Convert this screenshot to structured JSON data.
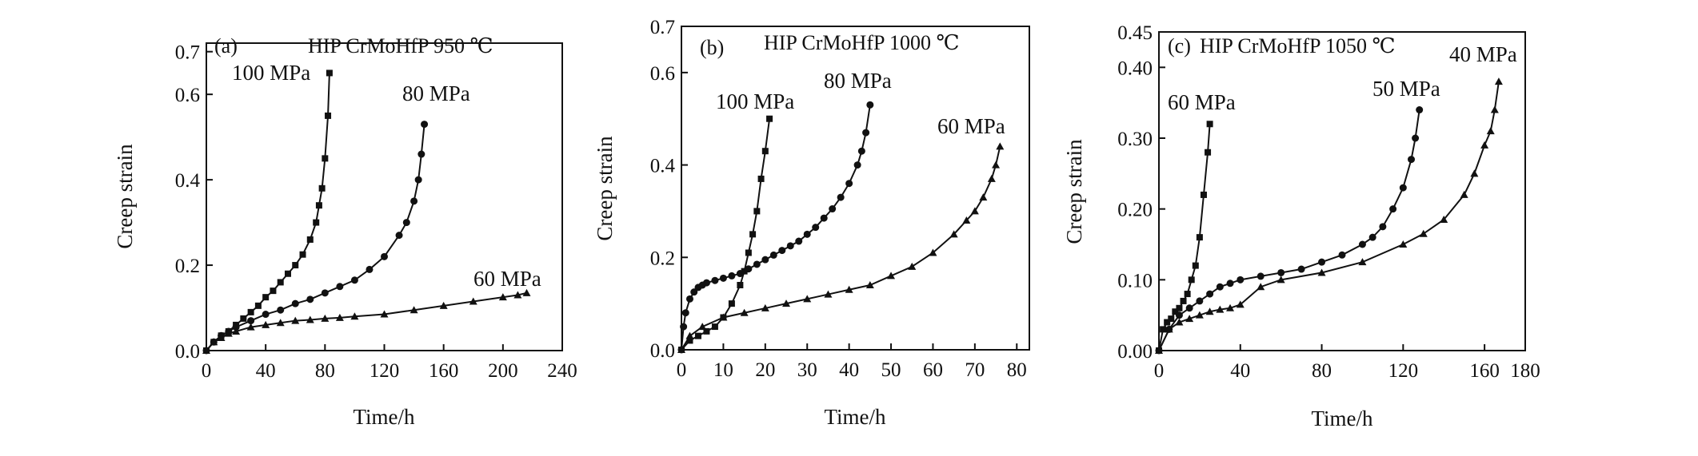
{
  "chart_data": [
    {
      "type": "line",
      "panel_label": "(a)",
      "title": "HIP CrMoHfP 950 ℃",
      "xlabel": "Time/h",
      "ylabel": "Creep strain",
      "xlim": [
        0,
        240
      ],
      "ylim": [
        0,
        0.72
      ],
      "xticks": [
        "0",
        "40",
        "80",
        "120",
        "160",
        "200",
        "240"
      ],
      "yticks": [
        "0.0",
        "0.2",
        "0.4",
        "0.6",
        "0.7"
      ],
      "series": [
        {
          "name": "100 MPa",
          "marker": "square",
          "x": [
            0,
            5,
            10,
            15,
            20,
            25,
            30,
            35,
            40,
            45,
            50,
            55,
            60,
            65,
            70,
            74,
            76,
            78,
            80,
            82,
            83
          ],
          "y": [
            0,
            0.02,
            0.035,
            0.045,
            0.06,
            0.075,
            0.09,
            0.105,
            0.125,
            0.14,
            0.16,
            0.18,
            0.2,
            0.225,
            0.26,
            0.3,
            0.34,
            0.38,
            0.45,
            0.55,
            0.65
          ]
        },
        {
          "name": "80 MPa",
          "marker": "circle",
          "x": [
            0,
            5,
            10,
            15,
            20,
            30,
            40,
            50,
            60,
            70,
            80,
            90,
            100,
            110,
            120,
            130,
            135,
            140,
            143,
            145,
            147
          ],
          "y": [
            0,
            0.02,
            0.035,
            0.045,
            0.055,
            0.07,
            0.085,
            0.095,
            0.11,
            0.12,
            0.135,
            0.15,
            0.165,
            0.19,
            0.22,
            0.27,
            0.3,
            0.35,
            0.4,
            0.46,
            0.53
          ]
        },
        {
          "name": "60 MPa",
          "marker": "triangle",
          "x": [
            0,
            5,
            10,
            15,
            20,
            30,
            40,
            50,
            60,
            70,
            80,
            90,
            100,
            120,
            140,
            160,
            180,
            200,
            210,
            216
          ],
          "y": [
            0,
            0.02,
            0.03,
            0.04,
            0.045,
            0.055,
            0.06,
            0.065,
            0.07,
            0.072,
            0.075,
            0.077,
            0.08,
            0.085,
            0.095,
            0.105,
            0.115,
            0.125,
            0.13,
            0.135
          ]
        }
      ]
    },
    {
      "type": "line",
      "panel_label": "(b)",
      "title": "HIP CrMoHfP 1000 ℃",
      "xlabel": "Time/h",
      "ylabel": "Creep strain",
      "xlim": [
        0,
        83
      ],
      "ylim": [
        0,
        0.7
      ],
      "xticks": [
        "0",
        "10",
        "20",
        "30",
        "40",
        "50",
        "60",
        "70",
        "80"
      ],
      "yticks": [
        "0.0",
        "0.2",
        "0.4",
        "0.6",
        "0.7"
      ],
      "series": [
        {
          "name": "100 MPa",
          "marker": "square",
          "x": [
            0,
            2,
            4,
            6,
            8,
            10,
            12,
            14,
            15,
            16,
            17,
            18,
            19,
            20,
            21
          ],
          "y": [
            0,
            0.02,
            0.03,
            0.04,
            0.05,
            0.07,
            0.1,
            0.14,
            0.17,
            0.21,
            0.25,
            0.3,
            0.37,
            0.43,
            0.5
          ]
        },
        {
          "name": "80 MPa",
          "marker": "circle",
          "x": [
            0,
            0.5,
            1,
            2,
            3,
            4,
            5,
            6,
            8,
            10,
            12,
            14,
            16,
            18,
            20,
            22,
            24,
            26,
            28,
            30,
            32,
            34,
            36,
            38,
            40,
            42,
            43,
            44,
            45
          ],
          "y": [
            0,
            0.05,
            0.08,
            0.11,
            0.125,
            0.135,
            0.14,
            0.145,
            0.15,
            0.155,
            0.16,
            0.165,
            0.175,
            0.185,
            0.195,
            0.205,
            0.215,
            0.225,
            0.235,
            0.25,
            0.265,
            0.285,
            0.305,
            0.33,
            0.36,
            0.4,
            0.43,
            0.47,
            0.53
          ]
        },
        {
          "name": "60 MPa",
          "marker": "triangle",
          "x": [
            0,
            2,
            5,
            10,
            15,
            20,
            25,
            30,
            35,
            40,
            45,
            50,
            55,
            60,
            65,
            68,
            70,
            72,
            74,
            75,
            76
          ],
          "y": [
            0,
            0.03,
            0.05,
            0.07,
            0.08,
            0.09,
            0.1,
            0.11,
            0.12,
            0.13,
            0.14,
            0.16,
            0.18,
            0.21,
            0.25,
            0.28,
            0.3,
            0.33,
            0.37,
            0.4,
            0.44
          ]
        }
      ]
    },
    {
      "type": "line",
      "panel_label": "(c)",
      "title": "HIP CrMoHfP 1050 ℃",
      "xlabel": "Time/h",
      "ylabel": "Creep strain",
      "xlim": [
        0,
        180
      ],
      "ylim": [
        0,
        0.45
      ],
      "xticks": [
        "0",
        "40",
        "80",
        "120",
        "160",
        "180"
      ],
      "yticks": [
        "0.00",
        "0.10",
        "0.20",
        "0.30",
        "0.40",
        "0.45"
      ],
      "series": [
        {
          "name": "60 MPa",
          "marker": "square",
          "x": [
            0,
            2,
            4,
            6,
            8,
            10,
            12,
            14,
            16,
            18,
            20,
            22,
            24,
            25
          ],
          "y": [
            0,
            0.03,
            0.04,
            0.045,
            0.055,
            0.06,
            0.07,
            0.08,
            0.1,
            0.12,
            0.16,
            0.22,
            0.28,
            0.32
          ]
        },
        {
          "name": "50 MPa",
          "marker": "circle",
          "x": [
            0,
            5,
            10,
            15,
            20,
            25,
            30,
            35,
            40,
            50,
            60,
            70,
            80,
            90,
            100,
            105,
            110,
            115,
            120,
            124,
            126,
            128
          ],
          "y": [
            0,
            0.03,
            0.05,
            0.06,
            0.07,
            0.08,
            0.09,
            0.095,
            0.1,
            0.105,
            0.11,
            0.115,
            0.125,
            0.135,
            0.15,
            0.16,
            0.175,
            0.2,
            0.23,
            0.27,
            0.3,
            0.34
          ]
        },
        {
          "name": "40 MPa",
          "marker": "triangle",
          "x": [
            0,
            5,
            10,
            15,
            20,
            25,
            30,
            35,
            40,
            50,
            60,
            80,
            100,
            120,
            130,
            140,
            150,
            155,
            160,
            163,
            165,
            167
          ],
          "y": [
            0,
            0.03,
            0.04,
            0.045,
            0.05,
            0.055,
            0.058,
            0.06,
            0.065,
            0.09,
            0.1,
            0.11,
            0.125,
            0.15,
            0.165,
            0.185,
            0.22,
            0.25,
            0.29,
            0.31,
            0.34,
            0.38
          ]
        }
      ]
    }
  ]
}
